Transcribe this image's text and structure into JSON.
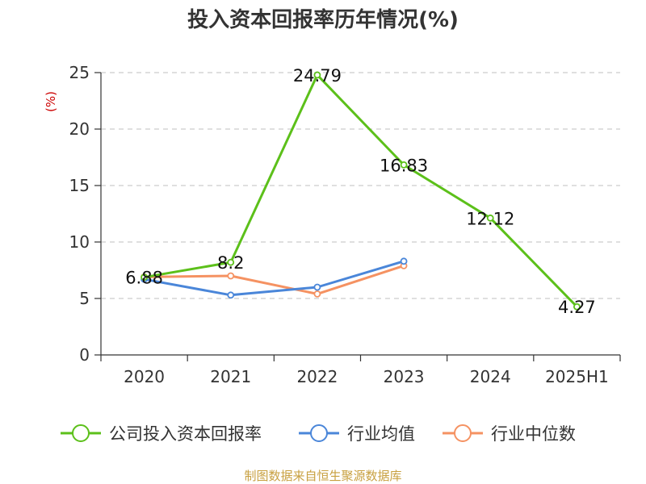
{
  "chart_data": {
    "type": "line",
    "title": "投入资本回报率历年情况(%)",
    "ylabel": "(%)",
    "categories": [
      "2020",
      "2021",
      "2022",
      "2023",
      "2024",
      "2025H1"
    ],
    "ylim": [
      0,
      25
    ],
    "yticks": [
      0,
      5,
      10,
      15,
      20,
      25
    ],
    "grid": true,
    "legend_position": "bottom",
    "series": [
      {
        "name": "公司投入资本回报率",
        "color": "#5cc01a",
        "values": [
          6.88,
          8.2,
          24.79,
          16.83,
          12.12,
          4.27
        ],
        "labels": [
          "6.88",
          "8.2",
          "24.79",
          "16.83",
          "12.12",
          "4.27"
        ]
      },
      {
        "name": "行业均值",
        "color": "#4a86d9",
        "values": [
          6.7,
          5.3,
          6.0,
          8.3,
          null,
          null
        ]
      },
      {
        "name": "行业中位数",
        "color": "#f59262",
        "values": [
          6.9,
          7.0,
          5.4,
          7.9,
          null,
          null
        ]
      }
    ]
  },
  "colors": {
    "unit": "#cc0000",
    "axis": "#333333",
    "grid": "#cccccc",
    "source": "#c8a040"
  },
  "source_text": "制图数据来自恒生聚源数据库"
}
